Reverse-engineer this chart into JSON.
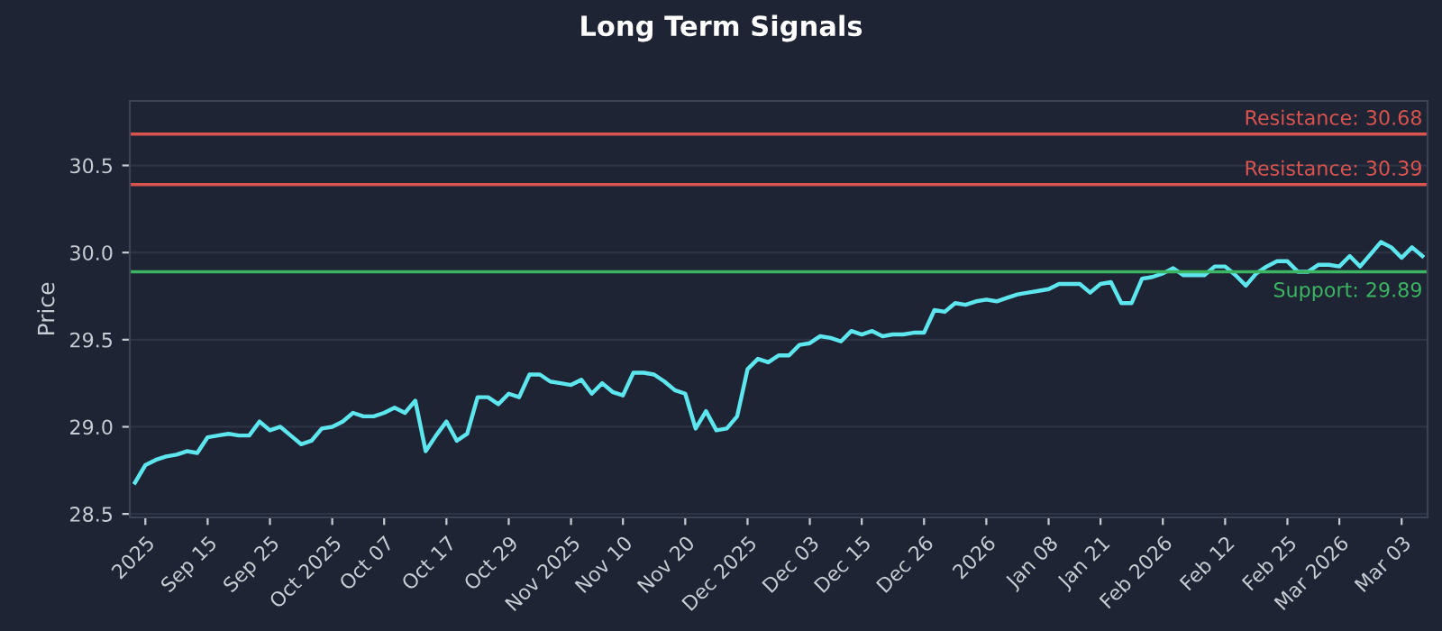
{
  "chart_data": {
    "type": "line",
    "title": "Long Term Signals",
    "ylabel": "Price",
    "categories": [
      null,
      "2025",
      null,
      null,
      null,
      null,
      null,
      "Sep 15",
      null,
      null,
      null,
      null,
      null,
      "Sep 25",
      null,
      null,
      null,
      null,
      null,
      "Oct 2025",
      null,
      null,
      null,
      null,
      "Oct 07",
      null,
      null,
      null,
      null,
      null,
      "Oct 17",
      null,
      null,
      null,
      null,
      null,
      "Oct 29",
      null,
      null,
      null,
      null,
      null,
      "Nov 2025",
      null,
      null,
      null,
      null,
      "Nov 10",
      null,
      null,
      null,
      null,
      null,
      "Nov 20",
      null,
      null,
      null,
      null,
      null,
      "Dec 2025",
      null,
      null,
      null,
      null,
      null,
      "Dec 03",
      null,
      null,
      null,
      null,
      "Dec 15",
      null,
      null,
      null,
      null,
      null,
      "Dec 26",
      null,
      null,
      null,
      null,
      null,
      "2026",
      null,
      null,
      null,
      null,
      null,
      "Jan 08",
      null,
      null,
      null,
      null,
      "Jan 21",
      null,
      null,
      null,
      null,
      null,
      "Feb 2026",
      null,
      null,
      null,
      null,
      null,
      "Feb 12",
      null,
      null,
      null,
      null,
      null,
      "Feb 25",
      null,
      null,
      null,
      null,
      "Mar 2026",
      null,
      null,
      null,
      null,
      null,
      "Mar 03",
      null,
      null
    ],
    "series": [
      {
        "color": "#5ee6ef",
        "values": [
          28.68,
          28.78,
          28.81,
          28.83,
          28.84,
          28.86,
          28.85,
          28.94,
          28.95,
          28.96,
          28.95,
          28.95,
          29.03,
          28.98,
          29.0,
          28.95,
          28.9,
          28.92,
          28.99,
          29.0,
          29.03,
          29.08,
          29.06,
          29.06,
          29.08,
          29.11,
          29.08,
          29.15,
          28.86,
          28.95,
          29.03,
          28.92,
          28.96,
          29.17,
          29.17,
          29.13,
          29.19,
          29.17,
          29.3,
          29.3,
          29.26,
          29.25,
          29.24,
          29.27,
          29.19,
          29.25,
          29.2,
          29.18,
          29.31,
          29.31,
          29.3,
          29.26,
          29.21,
          29.19,
          28.99,
          29.09,
          28.98,
          28.99,
          29.06,
          29.33,
          29.39,
          29.37,
          29.41,
          29.41,
          29.47,
          29.48,
          29.52,
          29.51,
          29.49,
          29.55,
          29.53,
          29.55,
          29.52,
          29.53,
          29.53,
          29.54,
          29.54,
          29.67,
          29.66,
          29.71,
          29.7,
          29.72,
          29.73,
          29.72,
          29.74,
          29.76,
          29.77,
          29.78,
          29.79,
          29.82,
          29.82,
          29.82,
          29.77,
          29.82,
          29.83,
          29.71,
          29.71,
          29.85,
          29.86,
          29.88,
          29.91,
          29.87,
          29.87,
          29.87,
          29.92,
          29.92,
          29.87,
          29.81,
          29.88,
          29.92,
          29.95,
          29.95,
          29.89,
          29.89,
          29.93,
          29.93,
          29.92,
          29.98,
          29.92,
          29.99,
          30.06,
          30.03,
          29.97,
          30.03,
          29.98
        ]
      }
    ],
    "ylim": [
      28.48,
      30.87
    ],
    "yticks": [
      28.5,
      {
        "value": 29,
        "label": "29.0"
      },
      29.5,
      {
        "value": 30,
        "label": "30.0"
      },
      30.5
    ],
    "grid": "y",
    "legend": false,
    "ref_lines": [
      {
        "axis": "y",
        "value": 30.68,
        "label": "Resistance: 30.68",
        "color": "#d9534f"
      },
      {
        "axis": "y",
        "value": 30.39,
        "label": "Resistance: 30.39",
        "color": "#d9534f"
      },
      {
        "axis": "y",
        "value": 29.89,
        "label": "Support: 29.89",
        "color": "#3cb562"
      }
    ]
  }
}
